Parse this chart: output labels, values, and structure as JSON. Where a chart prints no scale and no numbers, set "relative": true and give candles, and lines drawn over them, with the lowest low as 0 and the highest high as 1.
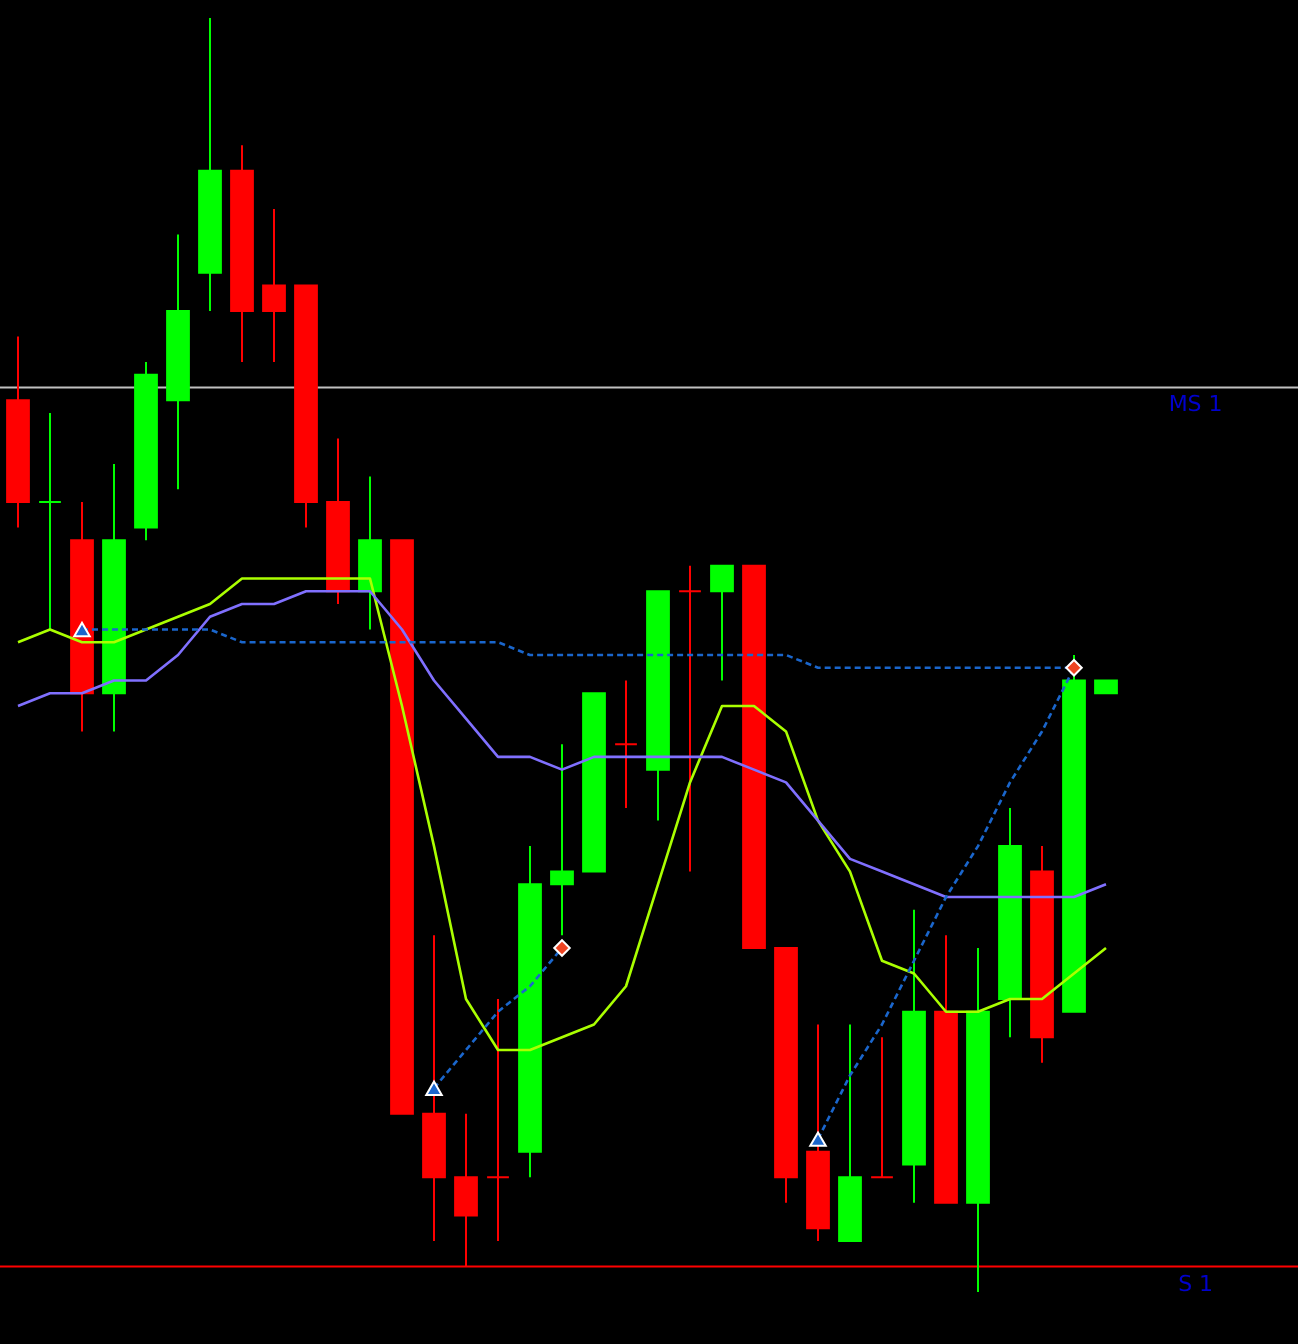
{
  "chart_data": {
    "type": "candlestick",
    "relative": true,
    "categories": [
      null,
      null,
      null,
      null,
      null,
      null,
      null,
      null,
      null,
      null,
      null,
      null,
      null,
      null,
      null,
      null,
      null,
      null,
      null,
      null,
      null,
      null,
      null,
      null,
      null,
      null,
      null,
      null,
      null,
      null,
      null,
      null,
      null,
      null,
      null
    ],
    "ohlc": [
      [
        0.7,
        0.75,
        0.6,
        0.62
      ],
      [
        0.62,
        0.69,
        0.52,
        0.62
      ],
      [
        0.59,
        0.62,
        0.44,
        0.47
      ],
      [
        0.47,
        0.65,
        0.44,
        0.59
      ],
      [
        0.6,
        0.73,
        0.59,
        0.72
      ],
      [
        0.7,
        0.83,
        0.63,
        0.77
      ],
      [
        0.8,
        1.0,
        0.77,
        0.88
      ],
      [
        0.88,
        0.9,
        0.73,
        0.77
      ],
      [
        0.79,
        0.85,
        0.73,
        0.77
      ],
      [
        0.79,
        0.79,
        0.6,
        0.62
      ],
      [
        0.62,
        0.67,
        0.54,
        0.55
      ],
      [
        0.55,
        0.64,
        0.52,
        0.59
      ],
      [
        0.59,
        0.59,
        0.14,
        0.14
      ],
      [
        0.14,
        0.28,
        0.04,
        0.09
      ],
      [
        0.09,
        0.14,
        0.02,
        0.06
      ],
      [
        0.09,
        0.23,
        0.04,
        0.09
      ],
      [
        0.11,
        0.35,
        0.09,
        0.32
      ],
      [
        0.32,
        0.43,
        0.28,
        0.33
      ],
      [
        0.33,
        0.47,
        0.33,
        0.47
      ],
      [
        0.43,
        0.48,
        0.38,
        0.43
      ],
      [
        0.41,
        0.55,
        0.37,
        0.55
      ],
      [
        0.55,
        0.57,
        0.33,
        0.55
      ],
      [
        0.55,
        0.57,
        0.48,
        0.57
      ],
      [
        0.57,
        0.57,
        0.27,
        0.27
      ],
      [
        0.27,
        0.27,
        0.07,
        0.09
      ],
      [
        0.11,
        0.21,
        0.04,
        0.05
      ],
      [
        0.04,
        0.21,
        0.04,
        0.09
      ],
      [
        0.09,
        0.2,
        0.09,
        0.09
      ],
      [
        0.1,
        0.3,
        0.07,
        0.22
      ],
      [
        0.22,
        0.28,
        0.07,
        0.07
      ],
      [
        0.07,
        0.27,
        0.0,
        0.22
      ],
      [
        0.23,
        0.38,
        0.2,
        0.35
      ],
      [
        0.33,
        0.35,
        0.18,
        0.2
      ],
      [
        0.22,
        0.5,
        0.22,
        0.48
      ],
      [
        0.47,
        0.48,
        0.47,
        0.48
      ]
    ],
    "colors": [
      "#ff0000",
      "#00ff00",
      "#ff0000",
      "#00ff00",
      "#00ff00",
      "#00ff00",
      "#00ff00",
      "#ff0000",
      "#ff0000",
      "#ff0000",
      "#ff0000",
      "#00ff00",
      "#ff0000",
      "#ff0000",
      "#ff0000",
      "#ff0000",
      "#00ff00",
      "#00ff00",
      "#00ff00",
      "#ff0000",
      "#00ff00",
      "#ff0000",
      "#00ff00",
      "#ff0000",
      "#ff0000",
      "#ff0000",
      "#00ff00",
      "#ff0000",
      "#00ff00",
      "#ff0000",
      "#00ff00",
      "#00ff00",
      "#ff0000",
      "#00ff00",
      "#00ff00"
    ],
    "series": [
      {
        "type": "line",
        "color": "#aaff00",
        "line_style": "solid",
        "values": [
          0.51,
          0.52,
          0.51,
          0.51,
          0.52,
          0.53,
          0.54,
          0.56,
          0.56,
          0.56,
          0.56,
          0.56,
          0.46,
          0.35,
          0.23,
          0.19,
          0.19,
          0.2,
          0.21,
          0.24,
          0.32,
          0.4,
          0.46,
          0.46,
          0.44,
          0.37,
          0.33,
          0.26,
          0.25,
          0.22,
          0.22,
          0.23,
          0.23,
          0.25,
          0.27
        ]
      },
      {
        "type": "line",
        "color": "#8070ff",
        "line_style": "solid",
        "values": [
          0.46,
          0.47,
          0.47,
          0.48,
          0.48,
          0.5,
          0.53,
          0.54,
          0.54,
          0.55,
          0.55,
          0.55,
          0.52,
          0.48,
          0.45,
          0.42,
          0.42,
          0.41,
          0.42,
          0.42,
          0.42,
          0.42,
          0.42,
          0.41,
          0.4,
          0.37,
          0.34,
          0.33,
          0.32,
          0.31,
          0.31,
          0.31,
          0.31,
          0.31,
          0.32
        ]
      },
      {
        "type": "line",
        "color": "#1a66cc",
        "line_style": "dashed",
        "values": [
          null,
          null,
          0.52,
          0.52,
          0.52,
          0.52,
          0.52,
          0.51,
          0.51,
          0.51,
          0.51,
          0.51,
          0.51,
          0.51,
          0.51,
          0.51,
          0.5,
          0.5,
          0.5,
          0.5,
          0.5,
          0.5,
          0.5,
          0.5,
          0.5,
          0.49,
          0.49,
          0.49,
          0.49,
          0.49,
          0.49,
          0.49,
          0.49,
          0.49,
          null
        ]
      },
      {
        "type": "line",
        "color": "#1a66cc",
        "line_style": "dashed",
        "values": [
          null,
          null,
          null,
          null,
          null,
          null,
          null,
          null,
          null,
          null,
          null,
          null,
          null,
          0.16,
          0.19,
          0.22,
          0.24,
          0.27,
          null,
          null,
          null,
          null,
          null,
          null,
          null,
          null,
          null,
          null,
          null,
          null,
          null,
          null,
          null,
          null,
          null
        ]
      },
      {
        "type": "line",
        "color": "#1a66cc",
        "line_style": "dashed",
        "values": [
          null,
          null,
          null,
          null,
          null,
          null,
          null,
          null,
          null,
          null,
          null,
          null,
          null,
          null,
          null,
          null,
          null,
          null,
          null,
          null,
          null,
          null,
          null,
          null,
          null,
          0.12,
          0.17,
          0.21,
          0.26,
          0.31,
          0.35,
          0.4,
          0.44,
          0.49,
          null
        ]
      },
      {
        "type": "scatter",
        "color": "#1a66cc",
        "marker": "triangle",
        "values": [
          null,
          null,
          0.52,
          null,
          null,
          null,
          null,
          null,
          null,
          null,
          null,
          null,
          null,
          0.16,
          null,
          null,
          null,
          null,
          null,
          null,
          null,
          null,
          null,
          null,
          null,
          0.12,
          null,
          null,
          null,
          null,
          null,
          null,
          null,
          null,
          null
        ]
      },
      {
        "type": "scatter",
        "color": "#ee4422",
        "marker": "diamond",
        "values": [
          null,
          null,
          null,
          null,
          null,
          null,
          null,
          null,
          null,
          null,
          null,
          null,
          null,
          null,
          null,
          null,
          null,
          0.27,
          null,
          null,
          null,
          null,
          null,
          null,
          null,
          null,
          null,
          null,
          null,
          null,
          null,
          null,
          null,
          0.49,
          null
        ]
      }
    ],
    "ref_lines": [
      {
        "axis": "y",
        "value": 0.71,
        "label": "MS 1",
        "color": "#c0c0c0"
      },
      {
        "axis": "y",
        "value": 0.02,
        "label": "S 1",
        "color": "#ff0000"
      }
    ]
  }
}
